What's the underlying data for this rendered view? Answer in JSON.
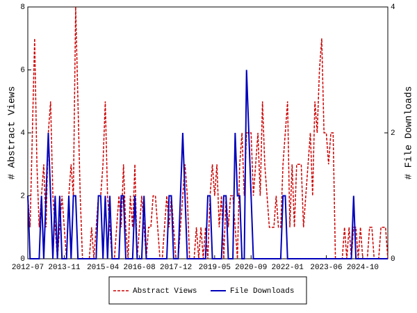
{
  "chart_data": {
    "type": "line",
    "ylabel": "# Abstract Views",
    "y2label": "# File Downloads",
    "categories": [
      "2012-07",
      null,
      null,
      null,
      null,
      null,
      null,
      null,
      null,
      null,
      null,
      null,
      null,
      null,
      null,
      null,
      "2013-11",
      null,
      null,
      null,
      null,
      null,
      null,
      null,
      null,
      null,
      null,
      null,
      null,
      null,
      null,
      null,
      null,
      "2015-04",
      null,
      null,
      null,
      null,
      null,
      null,
      null,
      null,
      null,
      null,
      null,
      null,
      null,
      null,
      null,
      "2016-08",
      null,
      null,
      null,
      null,
      null,
      null,
      null,
      null,
      null,
      null,
      null,
      null,
      null,
      null,
      null,
      "2017-12",
      null,
      null,
      null,
      null,
      null,
      null,
      null,
      null,
      null,
      null,
      null,
      null,
      null,
      null,
      null,
      null,
      "2019-05",
      null,
      null,
      null,
      null,
      null,
      null,
      null,
      null,
      null,
      null,
      null,
      null,
      null,
      null,
      null,
      "2020-09",
      null,
      null,
      null,
      null,
      null,
      null,
      null,
      null,
      null,
      null,
      null,
      null,
      null,
      null,
      null,
      "2022-01",
      null,
      null,
      null,
      null,
      null,
      null,
      null,
      null,
      null,
      null,
      null,
      null,
      null,
      null,
      null,
      null,
      "2023-06",
      null,
      null,
      null,
      null,
      null,
      null,
      null,
      null,
      null,
      null,
      null,
      null,
      null,
      null,
      null,
      "2024-10",
      null,
      null,
      null,
      null,
      null,
      null,
      null,
      null,
      null,
      null,
      null
    ],
    "series": [
      {
        "name": "Abstract Views",
        "color": "#cc0000",
        "dash": true,
        "axis": "y",
        "values": [
          2,
          1,
          4,
          7,
          3,
          1,
          2,
          3,
          1,
          4,
          5,
          2,
          1,
          0,
          1,
          2,
          1,
          0,
          2,
          3,
          2,
          8,
          5,
          2,
          0,
          0,
          0,
          0,
          1,
          0,
          1,
          2,
          2,
          3,
          5,
          2,
          1,
          0,
          0,
          1,
          2,
          1,
          3,
          1,
          0,
          2,
          1,
          3,
          0,
          1,
          2,
          1,
          0,
          1,
          1,
          2,
          2,
          1,
          0,
          0,
          1,
          2,
          1,
          2,
          1,
          0,
          0,
          1,
          2,
          3,
          2,
          0,
          0,
          0,
          1,
          0,
          1,
          0,
          1,
          0,
          2,
          3,
          2,
          3,
          1,
          2,
          0,
          2,
          1,
          2,
          2,
          1,
          0,
          3,
          4,
          2,
          4,
          4,
          4,
          2,
          3,
          4,
          2,
          5,
          3,
          2,
          1,
          1,
          1,
          2,
          1,
          1,
          3,
          4,
          5,
          1,
          3,
          1,
          3,
          3,
          3,
          1,
          2,
          3,
          4,
          2,
          5,
          4,
          6,
          7,
          4,
          4,
          3,
          4,
          4,
          0,
          0,
          0,
          0,
          1,
          0,
          1,
          0,
          1,
          1,
          0,
          1,
          0,
          0,
          0,
          1,
          1,
          0,
          0,
          0,
          1,
          1,
          1,
          0
        ]
      },
      {
        "name": "File Downloads",
        "color": "#0000bb",
        "dash": false,
        "axis": "y2",
        "values": [
          1,
          0,
          0,
          0,
          0,
          0,
          1,
          0,
          1,
          2,
          1,
          0,
          1,
          0,
          1,
          0,
          0,
          0,
          1,
          0,
          1,
          1,
          0,
          0,
          0,
          0,
          0,
          0,
          0,
          0,
          0,
          1,
          1,
          0,
          1,
          0,
          1,
          0,
          0,
          0,
          0,
          1,
          1,
          0,
          0,
          0,
          0,
          1,
          0,
          0,
          0,
          1,
          0,
          0,
          0,
          0,
          0,
          0,
          0,
          0,
          0,
          0,
          1,
          1,
          0,
          0,
          0,
          1,
          2,
          1,
          0,
          0,
          0,
          0,
          0,
          0,
          0,
          0,
          0,
          1,
          1,
          0,
          0,
          0,
          0,
          0,
          1,
          1,
          0,
          0,
          0,
          2,
          1,
          1,
          0,
          0,
          3,
          2,
          1,
          0,
          0,
          0,
          0,
          0,
          0,
          0,
          0,
          0,
          0,
          0,
          0,
          0,
          1,
          1,
          0,
          0,
          0,
          0,
          0,
          0,
          0,
          0,
          0,
          0,
          0,
          0,
          0,
          0,
          0,
          0,
          0,
          0,
          0,
          0,
          0,
          0,
          0,
          0,
          0,
          0,
          0,
          0,
          0,
          1,
          0,
          0,
          0,
          0,
          0,
          0,
          0,
          0,
          0,
          0,
          0,
          0,
          0,
          0,
          0
        ]
      }
    ],
    "ylim": [
      0,
      8
    ],
    "yticks": [
      0,
      2,
      4,
      6,
      8
    ],
    "y2lim": [
      0,
      4
    ],
    "y2ticks": [
      0,
      2,
      4
    ],
    "legend": "bottom"
  }
}
